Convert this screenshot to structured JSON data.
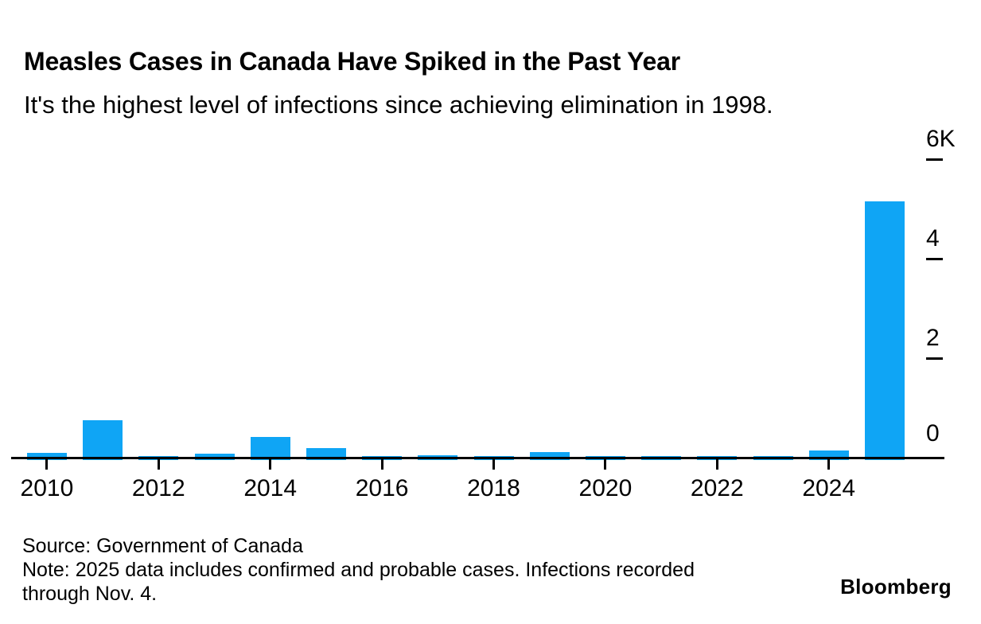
{
  "header": {
    "title": "Measles Cases in Canada Have Spiked in the Past Year",
    "subtitle": "It's the highest level of infections since achieving elimination in 1998."
  },
  "chart_data": {
    "type": "bar",
    "title": "Measles Cases in Canada Have Spiked in the Past Year",
    "subtitle": "It's the highest level of infections since achieving elimination in 1998.",
    "unit": "cases",
    "categories": [
      "2010",
      "2011",
      "2012",
      "2013",
      "2014",
      "2015",
      "2016",
      "2017",
      "2018",
      "2019",
      "2020",
      "2021",
      "2022",
      "2023",
      "2024",
      "2025"
    ],
    "values": [
      100,
      750,
      10,
      85,
      420,
      195,
      10,
      45,
      30,
      110,
      10,
      10,
      10,
      15,
      145,
      5150
    ],
    "ylim": [
      0,
      6000
    ],
    "y_ticks": [
      {
        "label": "6K",
        "value": 6000
      },
      {
        "label": "4",
        "value": 4000
      },
      {
        "label": "2",
        "value": 2000
      },
      {
        "label": "0",
        "value": 0
      }
    ],
    "x_tick_labels": [
      "2010",
      "2012",
      "2014",
      "2016",
      "2018",
      "2020",
      "2022",
      "2024"
    ],
    "y_axis_position": "right",
    "grid": false,
    "legend": "none",
    "bar_color": "#0FA5F5",
    "axis_color": "#000000"
  },
  "footer": {
    "source": "Source: Government of Canada",
    "note": "Note: 2025 data includes confirmed and probable cases. Infections recorded through Nov. 4.",
    "brand": "Bloomberg"
  }
}
